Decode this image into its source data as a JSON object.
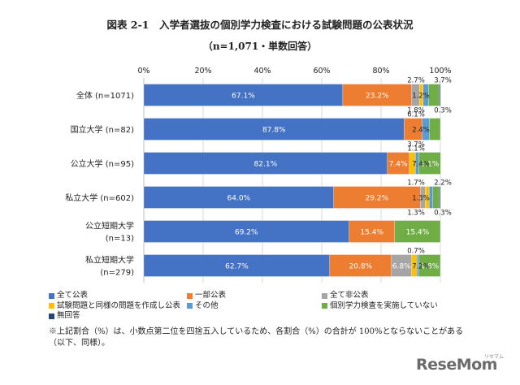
{
  "title": "図表 2-1　入学者選抜の個別学力検査における試験問題の公表状況",
  "subtitle": "（n=1,071・単数回答）",
  "chart_data": {
    "type": "bar",
    "orientation": "horizontal",
    "stacked": true,
    "categories": [
      [
        "全体 (n=1071)"
      ],
      [
        "国立大学 (n=82)"
      ],
      [
        "公立大学 (n=95)"
      ],
      [
        "私立大学 (n=602)"
      ],
      [
        "公立短期大学",
        "(n=13)"
      ],
      [
        "私立短期大学",
        "(n=279)"
      ]
    ],
    "series": [
      {
        "name": "全て公表",
        "color": "#4472C4",
        "values": [
          67.1,
          87.8,
          82.1,
          64.0,
          69.2,
          62.7
        ]
      },
      {
        "name": "一部公表",
        "color": "#ED7D31",
        "values": [
          23.2,
          6.1,
          7.4,
          29.2,
          15.4,
          20.8
        ]
      },
      {
        "name": "全て非公表",
        "color": "#A5A5A5",
        "values": [
          2.7,
          0.0,
          0.0,
          1.7,
          0.0,
          6.8
        ]
      },
      {
        "name": "試験問題と同様の問題を作成し公表",
        "color": "#FFC000",
        "values": [
          1.2,
          0.0,
          2.1,
          1.3,
          0.0,
          1.8
        ]
      },
      {
        "name": "その他",
        "color": "#5B9BD5",
        "values": [
          1.8,
          2.4,
          1.1,
          1.3,
          0.0,
          0.7
        ]
      },
      {
        "name": "個別学力検査を実施していない",
        "color": "#70AD47",
        "values": [
          3.7,
          3.7,
          7.4,
          2.2,
          15.4,
          7.2
        ]
      },
      {
        "name": "無回答",
        "color": "#264478",
        "values": [
          0.3,
          0.0,
          0.0,
          0.3,
          0.0,
          0.0
        ]
      }
    ],
    "data_labels": [
      [
        "67.1%",
        "23.2%",
        "2.7%",
        "1.2%",
        "1.8%",
        "3.7%",
        "0.3%"
      ],
      [
        "87.8%",
        "6.1%",
        "2.4%",
        "3.7%"
      ],
      [
        "82.1%",
        "7.4%",
        "2.1%",
        "1.1%",
        "7.4%"
      ],
      [
        "64.0%",
        "29.2%",
        "1.7%",
        "1.3%",
        "1.3%",
        "2.2%",
        "0.3%"
      ],
      [
        "69.2%",
        "15.4%",
        "15.4%"
      ],
      [
        "62.7%",
        "20.8%",
        "6.8%",
        "1.8%",
        "0.7%",
        "7.2%"
      ]
    ],
    "xticks": [
      "0%",
      "20%",
      "40%",
      "60%",
      "80%",
      "100%"
    ],
    "xlim": [
      0,
      100
    ],
    "grid": true,
    "legend_position": "bottom"
  },
  "legend": [
    "全て公表",
    "一部公表",
    "全て非公表",
    "試験問題と同様の問題を作成し公表",
    "その他",
    "個別学力検査を実施していない",
    "無回答"
  ],
  "note": "※上記割合（%）は、小数点第二位を四捨五入しているため、各割合（%）の合計が 100%とならないことがある（以下、同様）。",
  "logo": "ReseMom",
  "logo_sub": "リセマム"
}
